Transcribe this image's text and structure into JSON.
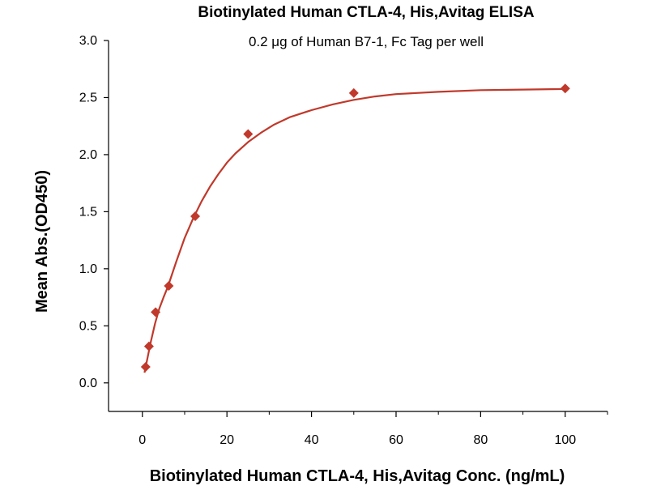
{
  "chart_data": {
    "type": "scatter",
    "title": "Biotinylated Human CTLA-4, His,Avitag ELISA",
    "subtitle": "0.2 μg of Human B7-1, Fc Tag per well",
    "xlabel": "Biotinylated Human CTLA-4, His,Avitag Conc. (ng/mL)",
    "ylabel": "Mean Abs.(OD450)",
    "xlim": [
      -8,
      110
    ],
    "ylim": [
      -0.25,
      3.0
    ],
    "x_ticks": [
      0,
      20,
      40,
      60,
      80,
      100
    ],
    "x_tick_labels": [
      "0",
      "20",
      "40",
      "60",
      "80",
      "100"
    ],
    "x_minor_ticks": [
      10,
      30,
      50,
      70,
      90,
      110
    ],
    "y_ticks": [
      0.0,
      0.5,
      1.0,
      1.5,
      2.0,
      2.5,
      3.0
    ],
    "y_tick_labels": [
      "0.0",
      "0.5",
      "1.0",
      "1.5",
      "2.0",
      "2.5",
      "3.0"
    ],
    "grid": false,
    "legend": "none",
    "colors": {
      "points": "#c0392b",
      "curve": "#c0392b",
      "axis": "#000000"
    },
    "series": [
      {
        "marker": "diamond",
        "x": [
          0.78,
          1.56,
          3.13,
          6.25,
          12.5,
          25,
          50,
          100
        ],
        "y": [
          0.14,
          0.32,
          0.62,
          0.85,
          1.46,
          2.18,
          2.54,
          2.58
        ]
      }
    ],
    "fit_curve": {
      "x": [
        0.5,
        1,
        1.5,
        2,
        3,
        4,
        5,
        6,
        8,
        10,
        12,
        14,
        16,
        18,
        20,
        22,
        25,
        28,
        31,
        35,
        40,
        45,
        50,
        55,
        60,
        70,
        80,
        90,
        100
      ],
      "y": [
        0.09,
        0.18,
        0.27,
        0.36,
        0.52,
        0.65,
        0.75,
        0.84,
        1.06,
        1.27,
        1.44,
        1.59,
        1.72,
        1.83,
        1.93,
        2.01,
        2.11,
        2.19,
        2.26,
        2.33,
        2.39,
        2.44,
        2.48,
        2.51,
        2.53,
        2.55,
        2.565,
        2.57,
        2.575
      ]
    }
  }
}
